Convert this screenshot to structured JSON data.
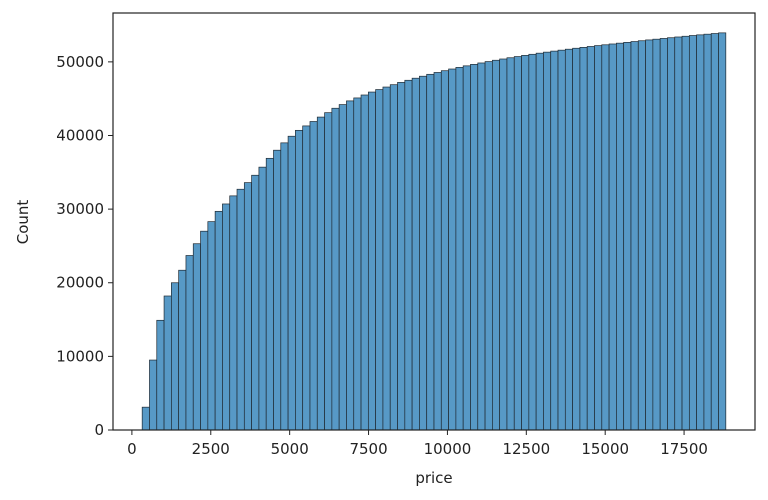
{
  "chart_data": {
    "type": "histogram",
    "cumulative": true,
    "xlabel": "price",
    "ylabel": "Count",
    "color": "#5799c6",
    "edgecolor": "#1f2a33",
    "bins": [
      326,
      557.2,
      788.4,
      1019.6,
      1250.9,
      1482.1,
      1713.3,
      1944.5,
      2175.7,
      2406.9,
      2638.1,
      2869.3,
      3100.6,
      3331.8,
      3563.0,
      3794.2,
      4025.4,
      4256.6,
      4487.8,
      4719.0,
      4950.3,
      5181.5,
      5412.7,
      5643.9,
      5875.1,
      6106.3,
      6337.5,
      6568.7,
      6800.0,
      7031.2,
      7262.4,
      7493.6,
      7724.8,
      7956.0,
      8187.2,
      8418.4,
      8649.7,
      8880.9,
      9112.1,
      9343.3,
      9574.5,
      9805.7,
      10036.9,
      10268.1,
      10499.3,
      10730.6,
      10961.8,
      11193.0,
      11424.2,
      11655.4,
      11886.6,
      12117.8,
      12349.1,
      12580.3,
      12811.5,
      13042.7,
      13273.9,
      13505.1,
      13736.3,
      13967.5,
      14198.8,
      14430.0,
      14661.2,
      14892.4,
      15123.6,
      15354.8,
      15586.0,
      15817.2,
      16048.5,
      16279.7,
      16510.9,
      16742.1,
      16973.3,
      17204.5,
      17435.7,
      17666.9,
      17898.2,
      18129.4,
      18360.6,
      18591.8,
      18823
    ],
    "values": [
      3100,
      9500,
      14900,
      18200,
      20000,
      21700,
      23700,
      25300,
      27000,
      28300,
      29700,
      30700,
      31800,
      32700,
      33600,
      34600,
      35700,
      36900,
      38000,
      39000,
      39900,
      40700,
      41300,
      41900,
      42500,
      43100,
      43700,
      44200,
      44700,
      45100,
      45500,
      45900,
      46240,
      46580,
      46900,
      47210,
      47500,
      47780,
      48050,
      48310,
      48560,
      48800,
      49030,
      49250,
      49460,
      49660,
      49850,
      50040,
      50220,
      50390,
      50560,
      50720,
      50880,
      51030,
      51180,
      51320,
      51460,
      51590,
      51720,
      51850,
      51970,
      52090,
      52210,
      52320,
      52430,
      52540,
      52650,
      52760,
      52870,
      52980,
      53080,
      53180,
      53280,
      53380,
      53480,
      53580,
      53670,
      53760,
      53850,
      53940
    ],
    "xlim": [
      -598.85,
      19747.85
    ],
    "ylim": [
      0,
      56637
    ],
    "xticks": [
      0,
      2500,
      5000,
      7500,
      10000,
      12500,
      15000,
      17500
    ],
    "yticks": [
      0,
      10000,
      20000,
      30000,
      40000,
      50000
    ]
  }
}
